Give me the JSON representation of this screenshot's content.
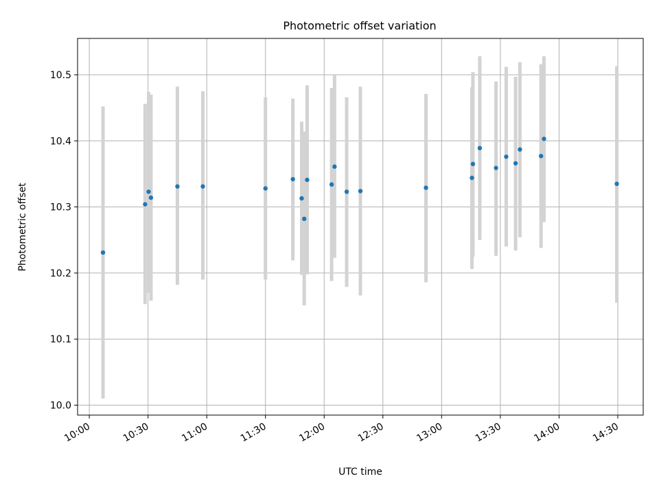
{
  "chart_data": {
    "type": "scatter",
    "title": "Photometric offset variation",
    "xlabel": "UTC time",
    "ylabel": "Photometric offset",
    "x_unit": "minutes since 10:00 UTC",
    "xlim": [
      -6,
      283
    ],
    "ylim": [
      9.985,
      10.555
    ],
    "grid": true,
    "x_ticks": [
      {
        "value": 0,
        "label": "10:00"
      },
      {
        "value": 30,
        "label": "10:30"
      },
      {
        "value": 60,
        "label": "11:00"
      },
      {
        "value": 90,
        "label": "11:30"
      },
      {
        "value": 120,
        "label": "12:00"
      },
      {
        "value": 150,
        "label": "12:30"
      },
      {
        "value": 180,
        "label": "13:00"
      },
      {
        "value": 210,
        "label": "13:30"
      },
      {
        "value": 240,
        "label": "14:00"
      },
      {
        "value": 270,
        "label": "14:30"
      }
    ],
    "y_ticks": [
      {
        "value": 10.0,
        "label": "10.0"
      },
      {
        "value": 10.1,
        "label": "10.1"
      },
      {
        "value": 10.2,
        "label": "10.2"
      },
      {
        "value": 10.3,
        "label": "10.3"
      },
      {
        "value": 10.4,
        "label": "10.4"
      },
      {
        "value": 10.5,
        "label": "10.5"
      }
    ],
    "marker_color": "#1f77b4",
    "errorbar_color": "#d3d3d3",
    "series": [
      {
        "name": "offset",
        "points": [
          {
            "x": 7.0,
            "y": 10.231,
            "lo": 10.01,
            "hi": 10.452
          },
          {
            "x": 28.5,
            "y": 10.304,
            "lo": 10.153,
            "hi": 10.456
          },
          {
            "x": 30.3,
            "y": 10.323,
            "lo": 10.17,
            "hi": 10.474
          },
          {
            "x": 31.5,
            "y": 10.314,
            "lo": 10.158,
            "hi": 10.47
          },
          {
            "x": 45.0,
            "y": 10.331,
            "lo": 10.182,
            "hi": 10.482
          },
          {
            "x": 58.0,
            "y": 10.331,
            "lo": 10.19,
            "hi": 10.475
          },
          {
            "x": 90.0,
            "y": 10.328,
            "lo": 10.19,
            "hi": 10.466
          },
          {
            "x": 104.0,
            "y": 10.342,
            "lo": 10.219,
            "hi": 10.464
          },
          {
            "x": 108.5,
            "y": 10.313,
            "lo": 10.197,
            "hi": 10.429
          },
          {
            "x": 109.8,
            "y": 10.282,
            "lo": 10.151,
            "hi": 10.414
          },
          {
            "x": 111.3,
            "y": 10.341,
            "lo": 10.198,
            "hi": 10.484
          },
          {
            "x": 123.8,
            "y": 10.334,
            "lo": 10.188,
            "hi": 10.48
          },
          {
            "x": 125.3,
            "y": 10.361,
            "lo": 10.223,
            "hi": 10.499
          },
          {
            "x": 131.5,
            "y": 10.323,
            "lo": 10.179,
            "hi": 10.466
          },
          {
            "x": 138.5,
            "y": 10.324,
            "lo": 10.166,
            "hi": 10.482
          },
          {
            "x": 172.0,
            "y": 10.329,
            "lo": 10.186,
            "hi": 10.471
          },
          {
            "x": 195.5,
            "y": 10.344,
            "lo": 10.206,
            "hi": 10.481
          },
          {
            "x": 196.0,
            "y": 10.365,
            "lo": 10.225,
            "hi": 10.504
          },
          {
            "x": 199.5,
            "y": 10.389,
            "lo": 10.25,
            "hi": 10.528
          },
          {
            "x": 207.8,
            "y": 10.359,
            "lo": 10.226,
            "hi": 10.49
          },
          {
            "x": 213.0,
            "y": 10.376,
            "lo": 10.24,
            "hi": 10.512
          },
          {
            "x": 217.8,
            "y": 10.366,
            "lo": 10.234,
            "hi": 10.497
          },
          {
            "x": 220.0,
            "y": 10.387,
            "lo": 10.254,
            "hi": 10.519
          },
          {
            "x": 230.8,
            "y": 10.377,
            "lo": 10.238,
            "hi": 10.516
          },
          {
            "x": 232.3,
            "y": 10.403,
            "lo": 10.277,
            "hi": 10.528
          },
          {
            "x": 269.5,
            "y": 10.335,
            "lo": 10.155,
            "hi": 10.513
          }
        ]
      }
    ]
  }
}
